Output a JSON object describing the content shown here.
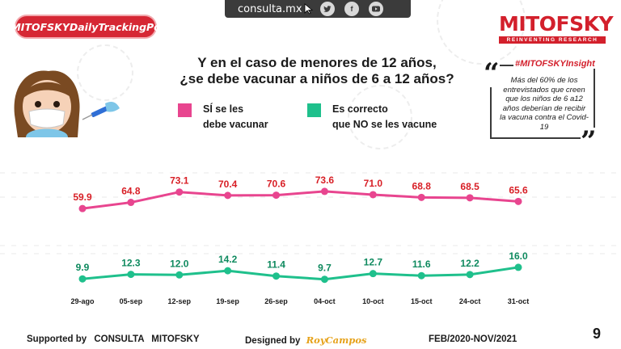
{
  "header": {
    "url": "consulta.mx",
    "social_icons": [
      "twitter-icon",
      "facebook-icon",
      "youtube-icon"
    ],
    "badge": "#MITOFSKYDailyTrackingPoll"
  },
  "logo": {
    "name": "MITOFSKY",
    "tagline": "REINVENTING RESEARCH"
  },
  "title_line1": "Y en el caso de menores de 12 años,",
  "title_line2": "¿se debe vacunar a niños de 6 a 12 años?",
  "insight": {
    "tag": "#MITOFSKYInsight",
    "text": "Más del 60% de los entrevistados que creen que los niños de 6 a12 años deberían de recibir la vacuna contra el Covid-19"
  },
  "chart_data": {
    "type": "line",
    "categories": [
      "29-ago",
      "05-sep",
      "12-sep",
      "19-sep",
      "26-sep",
      "04-oct",
      "10-oct",
      "15-oct",
      "24-oct",
      "31-oct"
    ],
    "series": [
      {
        "name": "SÍ se les debe vacunar",
        "legend_line1": "SÍ se les",
        "legend_line2": "debe vacunar",
        "color": "#e8458f",
        "values": [
          59.9,
          64.8,
          73.1,
          70.4,
          70.6,
          73.6,
          71.0,
          68.8,
          68.5,
          65.6
        ]
      },
      {
        "name": "Es correcto que NO se les vacune",
        "legend_line1": "Es correcto",
        "legend_line2": "que NO se les vacune",
        "color": "#1fc08c",
        "values": [
          9.9,
          12.3,
          12.0,
          14.2,
          11.4,
          9.7,
          12.7,
          11.6,
          12.2,
          16.0
        ]
      }
    ],
    "label_colors": {
      "series1": "#d81f26",
      "series2": "#0f8a5f"
    },
    "ylim": [
      0,
      80
    ]
  },
  "footer": {
    "supported_by": "Supported by",
    "consulta": "CONSULTA",
    "mitofsky": "MITOFSKY",
    "designed_by": "Designed by",
    "designer": "RoyCampos",
    "period": "FEB/2020-NOV/2021",
    "page": "9"
  }
}
